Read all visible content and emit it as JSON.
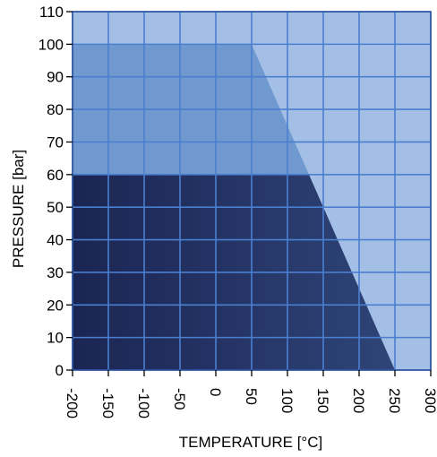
{
  "chart_data": {
    "type": "area",
    "xlabel": "TEMPERATURE [°C]",
    "ylabel": "PRESSURE [bar]",
    "xlim": [
      -200,
      300
    ],
    "ylim": [
      0,
      110
    ],
    "xticks": [
      "-200",
      "-150",
      "-100",
      "-50",
      "0",
      "50",
      "100",
      "150",
      "200",
      "250",
      "300"
    ],
    "yticks": [
      "0",
      "10",
      "20",
      "30",
      "40",
      "50",
      "60",
      "70",
      "80",
      "90",
      "100",
      "110"
    ],
    "grid": true,
    "regions": [
      {
        "polygon": [
          [
            -200,
            0
          ],
          [
            300,
            0
          ],
          [
            300,
            110
          ],
          [
            -200,
            110
          ]
        ],
        "color": "#a4bfe6"
      },
      {
        "polygon": [
          [
            -200,
            0
          ],
          [
            250,
            0
          ],
          [
            50,
            100
          ],
          [
            -200,
            100
          ]
        ],
        "color": "#7099cf"
      },
      {
        "polygon": [
          [
            -200,
            0
          ],
          [
            250,
            0
          ],
          [
            130,
            60
          ],
          [
            -200,
            60
          ]
        ],
        "color_left": "#1b2553",
        "color_right": "#2f4478"
      }
    ],
    "colors": {
      "grid": "#4a7fd0",
      "frame": "#2a4f9a"
    }
  }
}
